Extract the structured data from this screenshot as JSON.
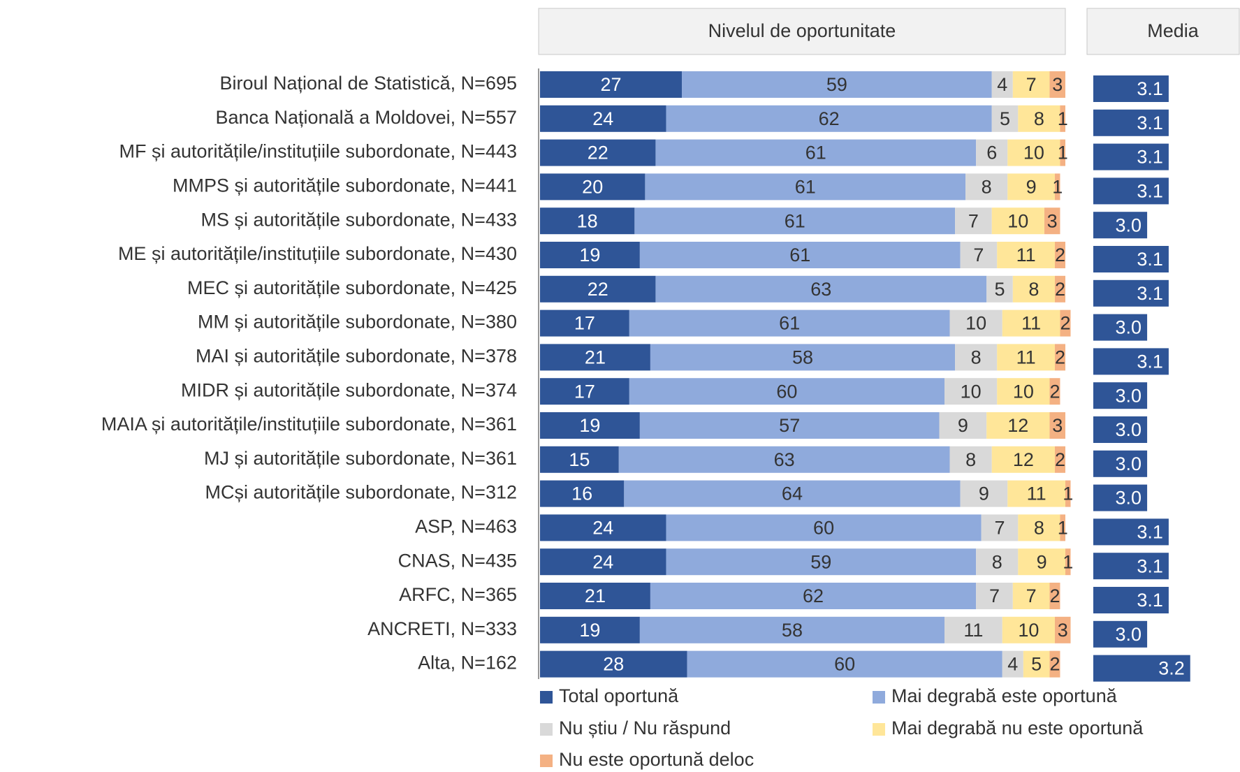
{
  "chart_data": [
    {
      "type": "stacked-bar",
      "title": "Nivelul de oportunitate",
      "xlim": [
        0,
        100
      ],
      "categories": [
        "Biroul Național de Statistică, N=695",
        "Banca Națională a Moldovei, N=557",
        "MF și autoritățile/instituțiile subordonate, N=443",
        "MMPS și autoritățile subordonate, N=441",
        "MS și autoritățile subordonate, N=433",
        "ME și autoritățile/instituțiile subordonate, N=430",
        "MEC și autoritățile subordonate, N=425",
        "MM și autoritățile subordonate, N=380",
        "MAI și autoritățile subordonate, N=378",
        "MIDR și autoritățile subordonate, N=374",
        "MAIA și autoritățile/instituțiile subordonate, N=361",
        "MJ și autoritățile subordonate, N=361",
        "MCși autoritățile subordonate, N=312",
        "ASP, N=463",
        "CNAS, N=435",
        "ARFC, N=365",
        "ANCRETI, N=333",
        "Alta, N=162"
      ],
      "series": [
        {
          "name": "Total oportună",
          "color": "#2f5597",
          "values": [
            27,
            24,
            22,
            20,
            18,
            19,
            22,
            17,
            21,
            17,
            19,
            15,
            16,
            24,
            24,
            21,
            19,
            28
          ]
        },
        {
          "name": "Mai degrabă este oportună",
          "color": "#8faadc",
          "values": [
            59,
            62,
            61,
            61,
            61,
            61,
            63,
            61,
            58,
            60,
            57,
            63,
            64,
            60,
            59,
            62,
            58,
            60
          ]
        },
        {
          "name": "Nu știu / Nu răspund",
          "color": "#d9d9d9",
          "values": [
            4,
            5,
            6,
            8,
            7,
            7,
            5,
            10,
            8,
            10,
            9,
            8,
            9,
            7,
            8,
            7,
            11,
            4
          ]
        },
        {
          "name": "Mai degrabă nu este oportună",
          "color": "#ffe699",
          "values": [
            7,
            8,
            10,
            9,
            10,
            11,
            8,
            11,
            11,
            10,
            12,
            12,
            11,
            8,
            9,
            7,
            10,
            5
          ]
        },
        {
          "name": "Nu este oportună deloc",
          "color": "#f4b183",
          "values": [
            3,
            1,
            1,
            1,
            3,
            2,
            2,
            2,
            2,
            2,
            3,
            2,
            1,
            1,
            1,
            2,
            3,
            2
          ]
        }
      ]
    },
    {
      "type": "bar",
      "title": "Media",
      "color": "#2f5597",
      "xlim": [
        2.75,
        3.35
      ],
      "values": [
        3.1,
        3.1,
        3.1,
        3.1,
        3.0,
        3.1,
        3.1,
        3.0,
        3.1,
        3.0,
        3.0,
        3.0,
        3.0,
        3.1,
        3.1,
        3.1,
        3.0,
        3.2
      ],
      "value_labels": [
        "3.1",
        "3.1",
        "3.1",
        "3.1",
        "3.0",
        "3.1",
        "3.1",
        "3.0",
        "3.1",
        "3.0",
        "3.0",
        "3.0",
        "3.0",
        "3.1",
        "3.1",
        "3.1",
        "3.0",
        "3.2"
      ]
    }
  ]
}
